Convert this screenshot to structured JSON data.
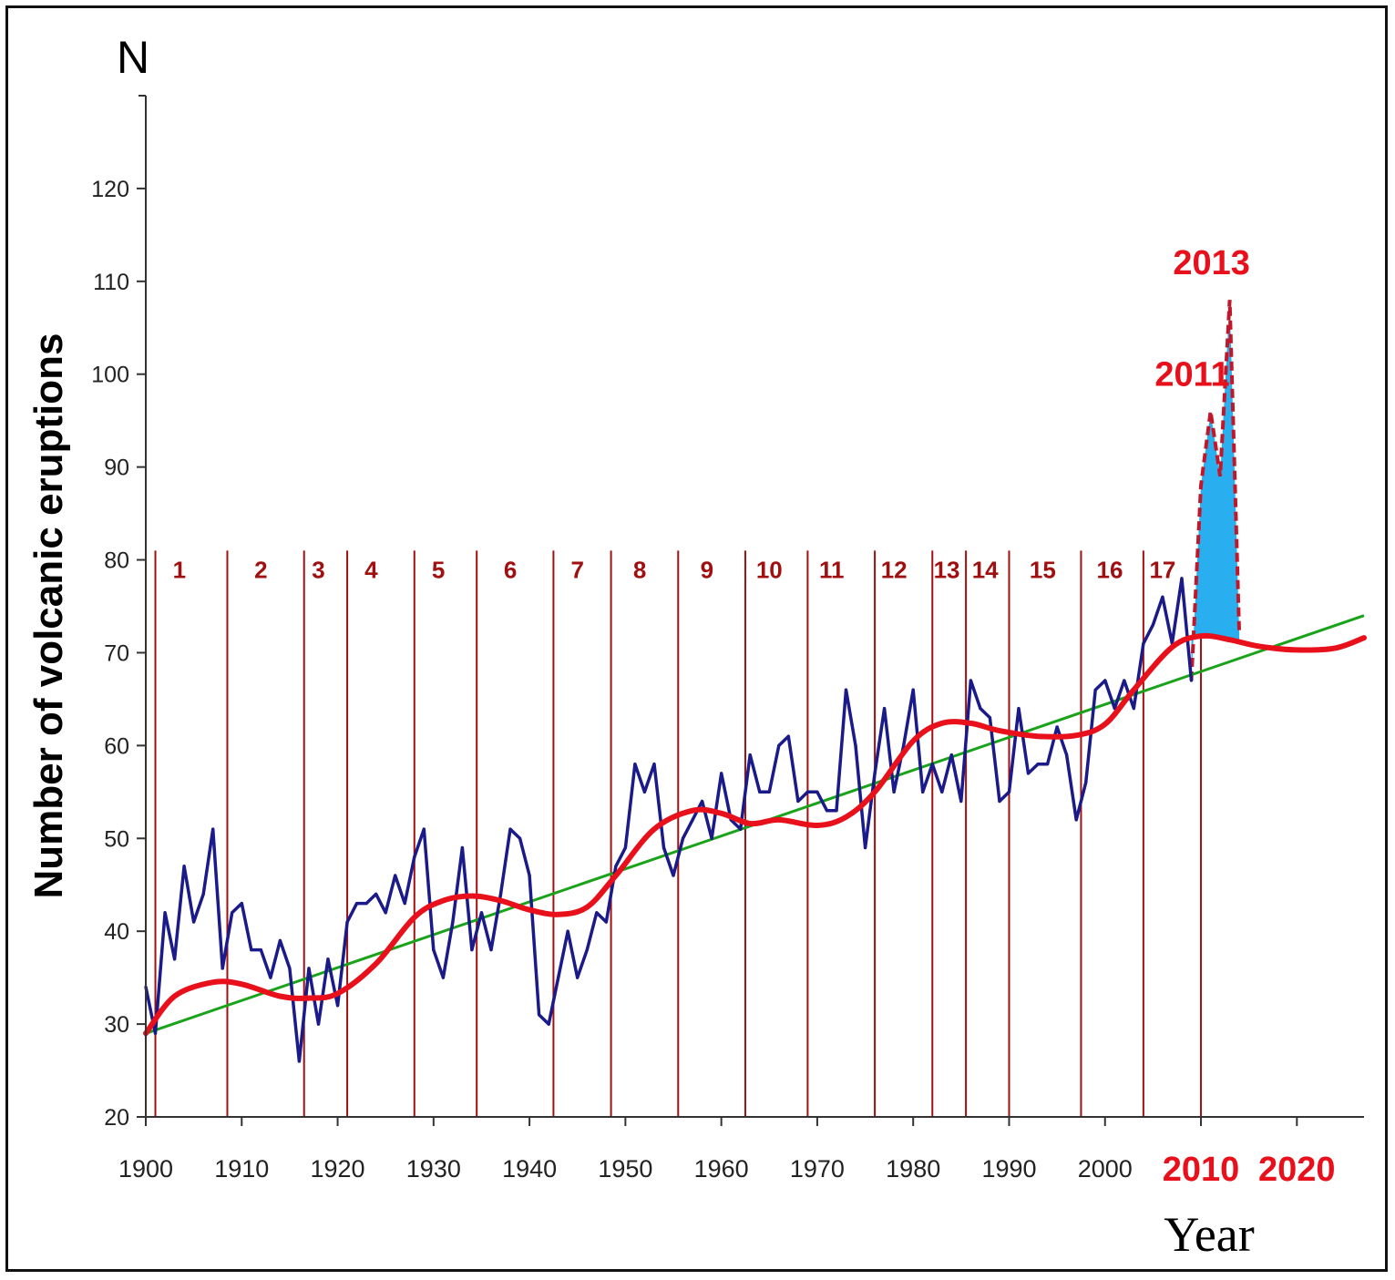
{
  "chart_data": {
    "type": "line",
    "y_axis_symbol": "N",
    "ylabel": "Number of volcanic eruptions",
    "xlabel": "Year",
    "xlim": [
      1900,
      2027
    ],
    "ylim": [
      20,
      130
    ],
    "x_ticks": [
      1900,
      1910,
      1920,
      1930,
      1940,
      1950,
      1960,
      1970,
      1980,
      1990,
      2000,
      2010,
      2020
    ],
    "x_tick_labels": [
      "1900",
      "1910",
      "1920",
      "1930",
      "1940",
      "1950",
      "1960",
      "1970",
      "1980",
      "1990",
      "2000",
      "2010",
      "2020"
    ],
    "highlighted_x_ticks": [
      2010,
      2020
    ],
    "y_ticks": [
      20,
      30,
      40,
      50,
      60,
      70,
      80,
      90,
      100,
      110,
      120
    ],
    "y_tick_labels": [
      "20",
      "30",
      "40",
      "50",
      "60",
      "70",
      "80",
      "90",
      "100",
      "110",
      "120"
    ],
    "grid": false,
    "colors": {
      "observed": "#1a1a8a",
      "smoothed": "#e8101b",
      "trend": "#1aa31a",
      "period_lines": "#a01010",
      "projection_fill": "#29aef0",
      "projection_outline": "#c0182a",
      "highlight_text": "#e8101b"
    },
    "observed": {
      "x": [
        1900,
        1901,
        1902,
        1903,
        1904,
        1905,
        1906,
        1907,
        1908,
        1909,
        1910,
        1911,
        1912,
        1913,
        1914,
        1915,
        1916,
        1917,
        1918,
        1919,
        1920,
        1921,
        1922,
        1923,
        1924,
        1925,
        1926,
        1927,
        1928,
        1929,
        1930,
        1931,
        1932,
        1933,
        1934,
        1935,
        1936,
        1937,
        1938,
        1939,
        1940,
        1941,
        1942,
        1943,
        1944,
        1945,
        1946,
        1947,
        1948,
        1949,
        1950,
        1951,
        1952,
        1953,
        1954,
        1955,
        1956,
        1957,
        1958,
        1959,
        1960,
        1961,
        1962,
        1963,
        1964,
        1965,
        1966,
        1967,
        1968,
        1969,
        1970,
        1971,
        1972,
        1973,
        1974,
        1975,
        1976,
        1977,
        1978,
        1979,
        1980,
        1981,
        1982,
        1983,
        1984,
        1985,
        1986,
        1987,
        1988,
        1989,
        1990,
        1991,
        1992,
        1993,
        1994,
        1995,
        1996,
        1997,
        1998,
        1999,
        2000,
        2001,
        2002,
        2003,
        2004,
        2005,
        2006,
        2007,
        2008,
        2009
      ],
      "values": [
        34,
        29,
        42,
        37,
        47,
        41,
        44,
        51,
        36,
        42,
        43,
        38,
        38,
        35,
        39,
        36,
        26,
        36,
        30,
        37,
        32,
        41,
        43,
        43,
        44,
        42,
        46,
        43,
        48,
        51,
        38,
        35,
        41,
        49,
        38,
        42,
        38,
        44,
        51,
        50,
        46,
        31,
        30,
        35,
        40,
        35,
        38,
        42,
        41,
        47,
        49,
        58,
        55,
        58,
        49,
        46,
        50,
        52,
        54,
        50,
        57,
        52,
        51,
        59,
        55,
        55,
        60,
        61,
        54,
        55,
        55,
        53,
        53,
        66,
        60,
        49,
        57,
        64,
        55,
        60,
        66,
        55,
        58,
        55,
        59,
        54,
        67,
        64,
        63,
        54,
        55,
        64,
        57,
        58,
        58,
        62,
        59,
        52,
        56,
        66,
        67,
        64,
        67,
        64,
        71,
        73,
        76,
        71,
        78,
        67
      ]
    },
    "projection": {
      "x": [
        2009,
        2010,
        2011,
        2012,
        2013,
        2014
      ],
      "values": [
        67,
        88,
        96,
        89,
        108,
        72
      ],
      "annotations": [
        {
          "label": "2011",
          "x": 2011,
          "y": 96
        },
        {
          "label": "2013",
          "x": 2013,
          "y": 108
        }
      ]
    },
    "smoothed_wave": {
      "x": [
        1900,
        1903,
        1907,
        1910,
        1914,
        1917,
        1920,
        1924,
        1928,
        1931,
        1934,
        1937,
        1940,
        1943,
        1946,
        1949,
        1953,
        1957,
        1960,
        1963,
        1966,
        1970,
        1973,
        1976,
        1980,
        1983,
        1986,
        1989,
        1993,
        1997,
        2000,
        2003,
        2007,
        2010,
        2013,
        2016,
        2020,
        2024,
        2027
      ],
      "values": [
        29,
        33,
        34.5,
        34.3,
        33,
        32.8,
        33.3,
        36.5,
        41.5,
        43.3,
        43.8,
        43.3,
        42.3,
        41.8,
        42.6,
        46,
        51,
        53,
        52.7,
        51.6,
        52,
        51.4,
        52.3,
        55,
        60.5,
        62.4,
        62.4,
        61.6,
        61,
        61.1,
        62.3,
        66,
        70.6,
        71.8,
        71.4,
        70.7,
        70.3,
        70.5,
        71.6
      ]
    },
    "trend": {
      "x": [
        1900,
        2027
      ],
      "values": [
        29,
        74
      ]
    },
    "periods": {
      "boundaries": [
        1901,
        1908.5,
        1916.5,
        1921,
        1928,
        1934.5,
        1942.5,
        1948.5,
        1955.5,
        1962.5,
        1969,
        1976,
        1982,
        1985.5,
        1990,
        1997.5,
        2004,
        2010
      ],
      "labels": [
        "1",
        "2",
        "3",
        "4",
        "5",
        "6",
        "7",
        "8",
        "9",
        "10",
        "11",
        "12",
        "13",
        "14",
        "15",
        "16",
        "17"
      ],
      "label_x": [
        1903.5,
        1912,
        1918,
        1923.5,
        1930.5,
        1938,
        1945,
        1951.5,
        1958.5,
        1965,
        1971.5,
        1978,
        1983.5,
        1987.5,
        1993.5,
        2000.5,
        2006
      ],
      "top_y": 81
    }
  }
}
